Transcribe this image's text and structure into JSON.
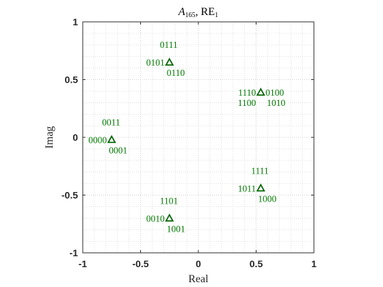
{
  "chart_data": {
    "type": "scatter",
    "title": {
      "italic": "A",
      "sub": "165",
      "rest": ", RE",
      "sub2": "1"
    },
    "xlabel": "Real",
    "ylabel": "Imag",
    "xlim": [
      -1,
      1
    ],
    "ylim": [
      -1,
      1
    ],
    "xticks": [
      -1,
      -0.5,
      0,
      0.5,
      1
    ],
    "yticks": [
      -1,
      -0.5,
      0,
      0.5,
      1
    ],
    "xtick_labels": [
      "-1",
      "-0.5",
      "0",
      "0.5",
      "1"
    ],
    "ytick_labels": [
      "-1",
      "-0.5",
      "0",
      "0.5",
      "1"
    ],
    "grid": true,
    "minor_grid": true,
    "marker": "triangle",
    "color": "#007a00",
    "marker_color": "#006400",
    "points": [
      {
        "x": -0.25,
        "y": 0.65,
        "labels": [
          {
            "text": "0111",
            "pos": "above"
          },
          {
            "text": "0101",
            "pos": "left"
          },
          {
            "text": "0110",
            "pos": "below"
          }
        ]
      },
      {
        "x": 0.54,
        "y": 0.39,
        "labels": [
          {
            "text": "1110",
            "pos": "left"
          },
          {
            "text": "0100",
            "pos": "right"
          },
          {
            "text": "1100",
            "pos": "below-left"
          },
          {
            "text": "1010",
            "pos": "below-right"
          }
        ]
      },
      {
        "x": -0.75,
        "y": -0.02,
        "labels": [
          {
            "text": "0011",
            "pos": "above"
          },
          {
            "text": "0000",
            "pos": "left"
          },
          {
            "text": "0001",
            "pos": "below"
          }
        ]
      },
      {
        "x": 0.54,
        "y": -0.44,
        "labels": [
          {
            "text": "1111",
            "pos": "above"
          },
          {
            "text": "1011",
            "pos": "left"
          },
          {
            "text": "1000",
            "pos": "below"
          }
        ]
      },
      {
        "x": -0.25,
        "y": -0.7,
        "labels": [
          {
            "text": "1101",
            "pos": "above"
          },
          {
            "text": "0010",
            "pos": "left"
          },
          {
            "text": "1001",
            "pos": "below"
          }
        ]
      }
    ]
  }
}
